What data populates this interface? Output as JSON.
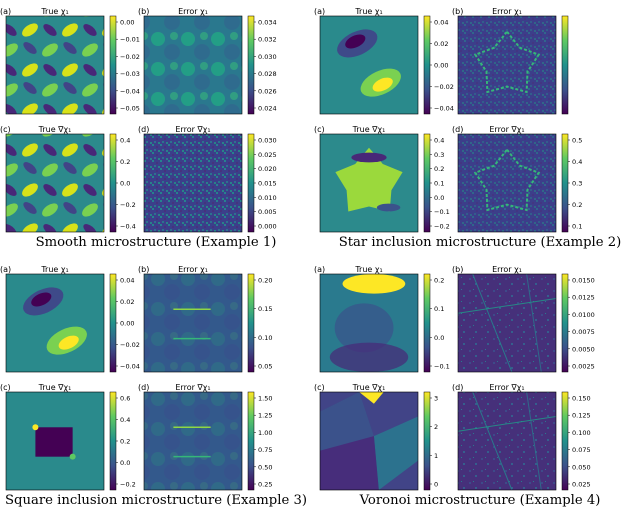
{
  "chart_data": [
    {
      "type": "heatmap",
      "caption": "Smooth microstructure (Example 1)",
      "panels": [
        {
          "letter": "(a)",
          "title": "True χ₁",
          "pattern": "smooth-field",
          "ticks": [
            "0.00",
            "−0.01",
            "−0.02",
            "−0.03",
            "−0.04",
            "−0.05"
          ]
        },
        {
          "letter": "(b)",
          "title": "Error χ₁",
          "pattern": "smooth-error",
          "ticks": [
            "0.034",
            "0.032",
            "0.030",
            "0.028",
            "0.026",
            "0.024"
          ]
        },
        {
          "letter": "(c)",
          "title": "True ∇χ₁",
          "pattern": "smooth-field",
          "ticks": [
            "0.4",
            "0.2",
            "0.0",
            "−0.2",
            "−0.4"
          ]
        },
        {
          "letter": "(d)",
          "title": "Error ∇χ₁",
          "pattern": "noise",
          "ticks": [
            "0.030",
            "0.025",
            "0.020",
            "0.015",
            "0.010",
            "0.005",
            "0.000"
          ]
        }
      ]
    },
    {
      "type": "heatmap",
      "caption": "Star inclusion microstructure (Example 2)",
      "panels": [
        {
          "letter": "(a)",
          "title": "True χ₁",
          "pattern": "dipole",
          "ticks": [
            "0.04",
            "0.02",
            "0.00",
            "−0.02",
            "−0.04"
          ]
        },
        {
          "letter": "(b)",
          "title": "Error χ₁",
          "pattern": "star-error",
          "ticks": []
        },
        {
          "letter": "(c)",
          "title": "True ∇χ₁",
          "pattern": "star",
          "ticks": [
            "0.4",
            "0.3",
            "0.2",
            "0.1",
            "0.0",
            "−0.1",
            "−0.2"
          ]
        },
        {
          "letter": "(d)",
          "title": "Error ∇χ₁",
          "pattern": "star-error",
          "ticks": [
            "0.5",
            "0.4",
            "0.3",
            "0.2",
            "0.1"
          ]
        }
      ]
    },
    {
      "type": "heatmap",
      "caption": "Square inclusion microstructure (Example 3)",
      "panels": [
        {
          "letter": "(a)",
          "title": "True χ₁",
          "pattern": "dipole",
          "ticks": [
            "0.04",
            "0.02",
            "0.00",
            "−0.02",
            "−0.04"
          ]
        },
        {
          "letter": "(b)",
          "title": "Error χ₁",
          "pattern": "square-error",
          "ticks": [
            "0.20",
            "0.15",
            "0.10",
            "0.05"
          ]
        },
        {
          "letter": "(c)",
          "title": "True ∇χ₁",
          "pattern": "square",
          "ticks": [
            "0.6",
            "0.4",
            "0.2",
            "0.0",
            "−0.2"
          ]
        },
        {
          "letter": "(d)",
          "title": "Error ∇χ₁",
          "pattern": "square-error",
          "ticks": [
            "1.50",
            "1.25",
            "1.00",
            "0.75",
            "0.50",
            "0.25"
          ]
        }
      ]
    },
    {
      "type": "heatmap",
      "caption": "Voronoi microstructure (Example 4)",
      "panels": [
        {
          "letter": "(a)",
          "title": "True χ₁",
          "pattern": "voronoi-field",
          "ticks": [
            "0.2",
            "0.1",
            "0.0",
            "−0.1"
          ]
        },
        {
          "letter": "(b)",
          "title": "Error χ₁",
          "pattern": "voronoi-error",
          "ticks": [
            "0.0150",
            "0.0125",
            "0.0100",
            "0.0075",
            "0.0050",
            "0.0025"
          ]
        },
        {
          "letter": "(c)",
          "title": "True ∇χ₁",
          "pattern": "voronoi",
          "ticks": [
            "3",
            "2",
            "1",
            "0"
          ]
        },
        {
          "letter": "(d)",
          "title": "Error ∇χ₁",
          "pattern": "voronoi-error",
          "ticks": [
            "0.150",
            "0.125",
            "0.100",
            "0.075",
            "0.050",
            "0.025"
          ]
        }
      ]
    }
  ],
  "colormap": [
    "#440154",
    "#3b528b",
    "#21918c",
    "#5ec962",
    "#fde725"
  ]
}
